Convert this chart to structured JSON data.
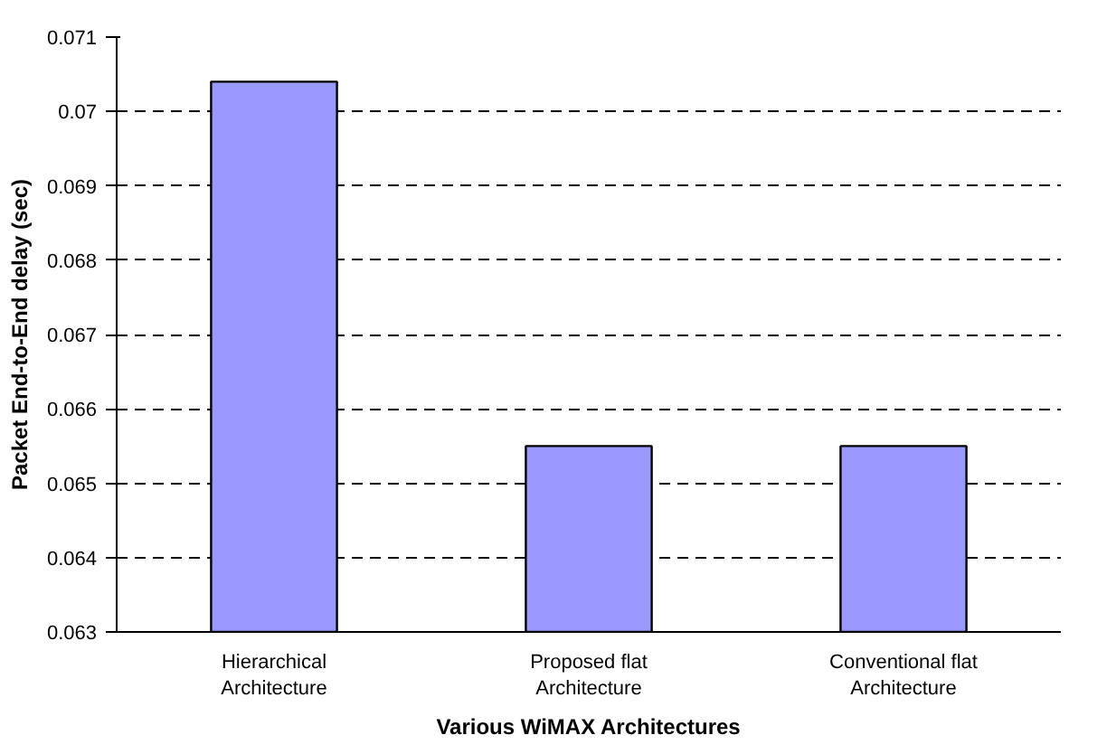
{
  "chart_data": {
    "type": "bar",
    "xlabel": "Various WiMAX Architectures",
    "ylabel": "Packet End-to-End delay (sec)",
    "categories": [
      "Hierarchical Architecture",
      "Proposed flat Architecture",
      "Conventional flat Architecture"
    ],
    "values": [
      0.0704,
      0.0655,
      0.0655
    ],
    "color": "#9999ff",
    "ylim": [
      0.063,
      0.071
    ],
    "yticks": [
      0.063,
      0.064,
      0.065,
      0.066,
      0.067,
      0.068,
      0.069,
      0.07,
      0.071
    ],
    "grid": "y"
  }
}
